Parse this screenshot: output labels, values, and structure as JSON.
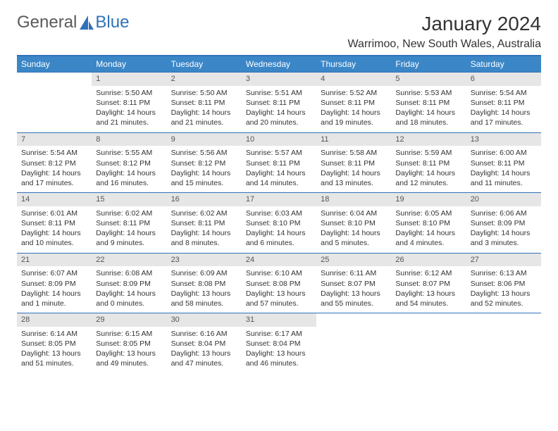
{
  "brand": {
    "word1": "General",
    "word2": "Blue"
  },
  "header": {
    "month_title": "January 2024",
    "location": "Warrimoo, New South Wales, Australia"
  },
  "colors": {
    "accent": "#2f72b8",
    "header_bg": "#3b86c7",
    "header_text": "#ffffff",
    "daynum_bg": "#e6e6e6",
    "body_text": "#333333"
  },
  "calendar": {
    "day_headers": [
      "Sunday",
      "Monday",
      "Tuesday",
      "Wednesday",
      "Thursday",
      "Friday",
      "Saturday"
    ],
    "weeks": [
      [
        {
          "empty": true
        },
        {
          "num": "1",
          "sunrise": "Sunrise: 5:50 AM",
          "sunset": "Sunset: 8:11 PM",
          "daylight1": "Daylight: 14 hours",
          "daylight2": "and 21 minutes."
        },
        {
          "num": "2",
          "sunrise": "Sunrise: 5:50 AM",
          "sunset": "Sunset: 8:11 PM",
          "daylight1": "Daylight: 14 hours",
          "daylight2": "and 21 minutes."
        },
        {
          "num": "3",
          "sunrise": "Sunrise: 5:51 AM",
          "sunset": "Sunset: 8:11 PM",
          "daylight1": "Daylight: 14 hours",
          "daylight2": "and 20 minutes."
        },
        {
          "num": "4",
          "sunrise": "Sunrise: 5:52 AM",
          "sunset": "Sunset: 8:11 PM",
          "daylight1": "Daylight: 14 hours",
          "daylight2": "and 19 minutes."
        },
        {
          "num": "5",
          "sunrise": "Sunrise: 5:53 AM",
          "sunset": "Sunset: 8:11 PM",
          "daylight1": "Daylight: 14 hours",
          "daylight2": "and 18 minutes."
        },
        {
          "num": "6",
          "sunrise": "Sunrise: 5:54 AM",
          "sunset": "Sunset: 8:11 PM",
          "daylight1": "Daylight: 14 hours",
          "daylight2": "and 17 minutes."
        }
      ],
      [
        {
          "num": "7",
          "sunrise": "Sunrise: 5:54 AM",
          "sunset": "Sunset: 8:12 PM",
          "daylight1": "Daylight: 14 hours",
          "daylight2": "and 17 minutes."
        },
        {
          "num": "8",
          "sunrise": "Sunrise: 5:55 AM",
          "sunset": "Sunset: 8:12 PM",
          "daylight1": "Daylight: 14 hours",
          "daylight2": "and 16 minutes."
        },
        {
          "num": "9",
          "sunrise": "Sunrise: 5:56 AM",
          "sunset": "Sunset: 8:12 PM",
          "daylight1": "Daylight: 14 hours",
          "daylight2": "and 15 minutes."
        },
        {
          "num": "10",
          "sunrise": "Sunrise: 5:57 AM",
          "sunset": "Sunset: 8:11 PM",
          "daylight1": "Daylight: 14 hours",
          "daylight2": "and 14 minutes."
        },
        {
          "num": "11",
          "sunrise": "Sunrise: 5:58 AM",
          "sunset": "Sunset: 8:11 PM",
          "daylight1": "Daylight: 14 hours",
          "daylight2": "and 13 minutes."
        },
        {
          "num": "12",
          "sunrise": "Sunrise: 5:59 AM",
          "sunset": "Sunset: 8:11 PM",
          "daylight1": "Daylight: 14 hours",
          "daylight2": "and 12 minutes."
        },
        {
          "num": "13",
          "sunrise": "Sunrise: 6:00 AM",
          "sunset": "Sunset: 8:11 PM",
          "daylight1": "Daylight: 14 hours",
          "daylight2": "and 11 minutes."
        }
      ],
      [
        {
          "num": "14",
          "sunrise": "Sunrise: 6:01 AM",
          "sunset": "Sunset: 8:11 PM",
          "daylight1": "Daylight: 14 hours",
          "daylight2": "and 10 minutes."
        },
        {
          "num": "15",
          "sunrise": "Sunrise: 6:02 AM",
          "sunset": "Sunset: 8:11 PM",
          "daylight1": "Daylight: 14 hours",
          "daylight2": "and 9 minutes."
        },
        {
          "num": "16",
          "sunrise": "Sunrise: 6:02 AM",
          "sunset": "Sunset: 8:11 PM",
          "daylight1": "Daylight: 14 hours",
          "daylight2": "and 8 minutes."
        },
        {
          "num": "17",
          "sunrise": "Sunrise: 6:03 AM",
          "sunset": "Sunset: 8:10 PM",
          "daylight1": "Daylight: 14 hours",
          "daylight2": "and 6 minutes."
        },
        {
          "num": "18",
          "sunrise": "Sunrise: 6:04 AM",
          "sunset": "Sunset: 8:10 PM",
          "daylight1": "Daylight: 14 hours",
          "daylight2": "and 5 minutes."
        },
        {
          "num": "19",
          "sunrise": "Sunrise: 6:05 AM",
          "sunset": "Sunset: 8:10 PM",
          "daylight1": "Daylight: 14 hours",
          "daylight2": "and 4 minutes."
        },
        {
          "num": "20",
          "sunrise": "Sunrise: 6:06 AM",
          "sunset": "Sunset: 8:09 PM",
          "daylight1": "Daylight: 14 hours",
          "daylight2": "and 3 minutes."
        }
      ],
      [
        {
          "num": "21",
          "sunrise": "Sunrise: 6:07 AM",
          "sunset": "Sunset: 8:09 PM",
          "daylight1": "Daylight: 14 hours",
          "daylight2": "and 1 minute."
        },
        {
          "num": "22",
          "sunrise": "Sunrise: 6:08 AM",
          "sunset": "Sunset: 8:09 PM",
          "daylight1": "Daylight: 14 hours",
          "daylight2": "and 0 minutes."
        },
        {
          "num": "23",
          "sunrise": "Sunrise: 6:09 AM",
          "sunset": "Sunset: 8:08 PM",
          "daylight1": "Daylight: 13 hours",
          "daylight2": "and 58 minutes."
        },
        {
          "num": "24",
          "sunrise": "Sunrise: 6:10 AM",
          "sunset": "Sunset: 8:08 PM",
          "daylight1": "Daylight: 13 hours",
          "daylight2": "and 57 minutes."
        },
        {
          "num": "25",
          "sunrise": "Sunrise: 6:11 AM",
          "sunset": "Sunset: 8:07 PM",
          "daylight1": "Daylight: 13 hours",
          "daylight2": "and 55 minutes."
        },
        {
          "num": "26",
          "sunrise": "Sunrise: 6:12 AM",
          "sunset": "Sunset: 8:07 PM",
          "daylight1": "Daylight: 13 hours",
          "daylight2": "and 54 minutes."
        },
        {
          "num": "27",
          "sunrise": "Sunrise: 6:13 AM",
          "sunset": "Sunset: 8:06 PM",
          "daylight1": "Daylight: 13 hours",
          "daylight2": "and 52 minutes."
        }
      ],
      [
        {
          "num": "28",
          "sunrise": "Sunrise: 6:14 AM",
          "sunset": "Sunset: 8:05 PM",
          "daylight1": "Daylight: 13 hours",
          "daylight2": "and 51 minutes."
        },
        {
          "num": "29",
          "sunrise": "Sunrise: 6:15 AM",
          "sunset": "Sunset: 8:05 PM",
          "daylight1": "Daylight: 13 hours",
          "daylight2": "and 49 minutes."
        },
        {
          "num": "30",
          "sunrise": "Sunrise: 6:16 AM",
          "sunset": "Sunset: 8:04 PM",
          "daylight1": "Daylight: 13 hours",
          "daylight2": "and 47 minutes."
        },
        {
          "num": "31",
          "sunrise": "Sunrise: 6:17 AM",
          "sunset": "Sunset: 8:04 PM",
          "daylight1": "Daylight: 13 hours",
          "daylight2": "and 46 minutes."
        },
        {
          "empty": true
        },
        {
          "empty": true
        },
        {
          "empty": true
        }
      ]
    ]
  }
}
